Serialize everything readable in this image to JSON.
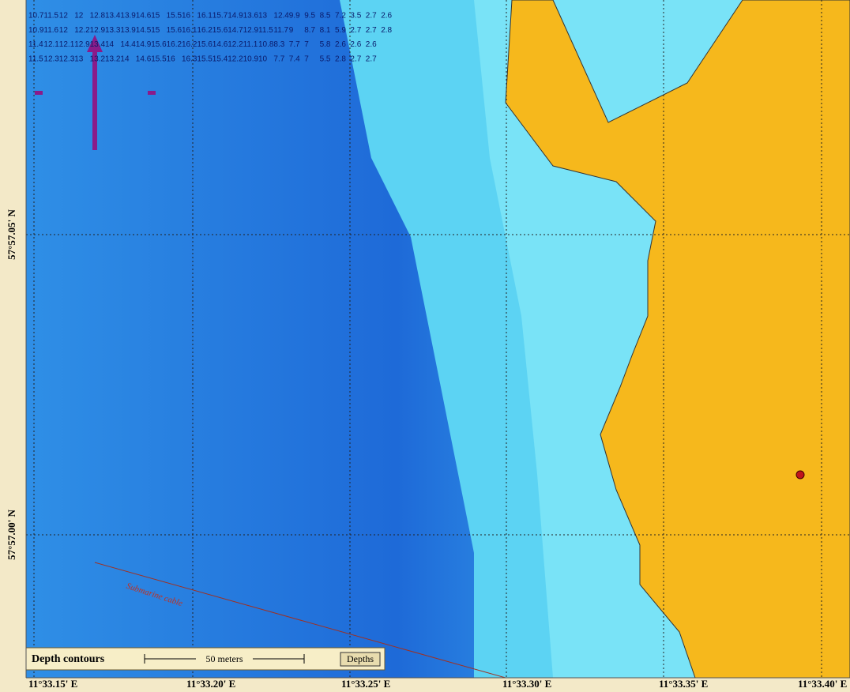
{
  "map": {
    "legend": {
      "title": "Depth contours",
      "scale_label": "50 meters",
      "button": "Depths"
    },
    "cable_label": "Submarine cable",
    "longitude_labels": [
      "11°33.15' E",
      "11°33.20' E",
      "11°33.25' E",
      "11°33.30' E",
      "11°33.35' E",
      "11°33.40' E"
    ],
    "latitude_labels": [
      "57°57.05' N",
      "57°57.00' N"
    ],
    "soundings": {
      "rows": [
        [
          10.7,
          11.5,
          12.0,
          12.0,
          12.8,
          13.4,
          13.9,
          14.6,
          15.0,
          15.5,
          16.0,
          16.1,
          15.7,
          14.9,
          13.6,
          13.0,
          12.4,
          9.9,
          9.5,
          8.5,
          7.2,
          3.5,
          2.7,
          2.6
        ],
        [
          10.9,
          11.6,
          12.0,
          12.2,
          12.9,
          13.3,
          13.9,
          14.5,
          15.0,
          15.6,
          16.1,
          16.2,
          15.6,
          14.7,
          12.9,
          11.5,
          11.7,
          9.0,
          8.7,
          8.1,
          5.9,
          2.7,
          2.7,
          2.8
        ],
        [
          11.4,
          12.1,
          12.1,
          12.9,
          13.4,
          14.0,
          14.4,
          14.9,
          15.6,
          16.2,
          16.2,
          15.6,
          14.6,
          12.2,
          11.1,
          10.8,
          8.3,
          7.7,
          7.0,
          5.8,
          2.6,
          2.6,
          2.6
        ],
        [
          11.5,
          12.3,
          12.3,
          13.0,
          13.2,
          13.2,
          14.0,
          14.6,
          15.5,
          16.0,
          16.3,
          15.5,
          15.4,
          12.2,
          10.9,
          10.0,
          7.7,
          7.4,
          7.0,
          5.5,
          2.8,
          2.7,
          2.7
        ]
      ]
    }
  }
}
